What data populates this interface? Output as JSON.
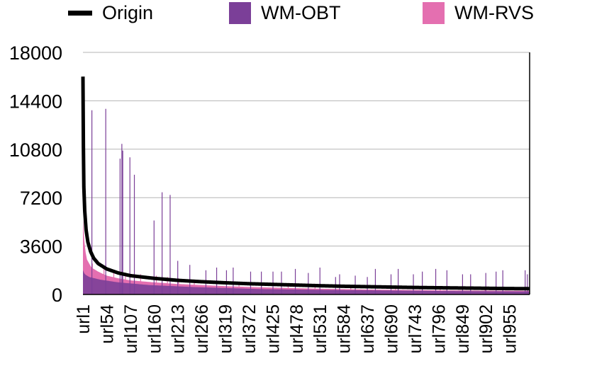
{
  "chart_data": {
    "type": "bar",
    "legend": {
      "placement": "top",
      "items": [
        {
          "name": "Origin",
          "kind": "line",
          "color": "#000000"
        },
        {
          "name": "WM-OBT",
          "kind": "bar",
          "color": "#7b3f98"
        },
        {
          "name": "WM-RVS",
          "kind": "bar",
          "color": "#e46fb0"
        }
      ]
    },
    "x_count": 1000,
    "tick_labels": [
      "url1",
      "url54",
      "url107",
      "url160",
      "url213",
      "url266",
      "url319",
      "url372",
      "url425",
      "url478",
      "url531",
      "url584",
      "url637",
      "url690",
      "url743",
      "url796",
      "url849",
      "url902",
      "url955"
    ],
    "ylim": [
      0,
      18000
    ],
    "yticks": [
      0,
      3600,
      7200,
      10800,
      14400,
      18000
    ],
    "grid": true,
    "series": [
      {
        "name": "Origin",
        "type": "line",
        "color": "#000000",
        "points": [
          [
            1,
            16200
          ],
          [
            2,
            11000
          ],
          [
            3,
            8000
          ],
          [
            5,
            6200
          ],
          [
            8,
            4800
          ],
          [
            12,
            3900
          ],
          [
            18,
            3200
          ],
          [
            25,
            2700
          ],
          [
            35,
            2300
          ],
          [
            54,
            1900
          ],
          [
            80,
            1600
          ],
          [
            107,
            1400
          ],
          [
            160,
            1200
          ],
          [
            213,
            1050
          ],
          [
            266,
            950
          ],
          [
            319,
            870
          ],
          [
            372,
            800
          ],
          [
            425,
            750
          ],
          [
            478,
            700
          ],
          [
            531,
            650
          ],
          [
            584,
            610
          ],
          [
            637,
            580
          ],
          [
            690,
            550
          ],
          [
            743,
            520
          ],
          [
            796,
            500
          ],
          [
            849,
            480
          ],
          [
            902,
            460
          ],
          [
            955,
            440
          ],
          [
            1000,
            430
          ]
        ]
      },
      {
        "name": "WM-RVS",
        "type": "bar",
        "color": "#e46fb0",
        "envelope": [
          [
            1,
            5600
          ],
          [
            3,
            4400
          ],
          [
            6,
            3300
          ],
          [
            10,
            2600
          ],
          [
            20,
            2000
          ],
          [
            35,
            1700
          ],
          [
            54,
            1400
          ],
          [
            80,
            1200
          ],
          [
            107,
            1050
          ],
          [
            160,
            900
          ],
          [
            213,
            780
          ],
          [
            266,
            700
          ],
          [
            319,
            620
          ],
          [
            372,
            560
          ],
          [
            425,
            510
          ],
          [
            478,
            470
          ],
          [
            531,
            430
          ],
          [
            584,
            400
          ],
          [
            637,
            370
          ],
          [
            690,
            350
          ],
          [
            743,
            330
          ],
          [
            796,
            310
          ],
          [
            849,
            300
          ],
          [
            902,
            290
          ],
          [
            955,
            280
          ],
          [
            1000,
            270
          ]
        ],
        "spikes": [
          [
            22,
            2300
          ],
          [
            48,
            2000
          ],
          [
            70,
            1800
          ],
          [
            96,
            1600
          ],
          [
            130,
            1500
          ],
          [
            165,
            1400
          ],
          [
            190,
            1300
          ],
          [
            215,
            1200
          ],
          [
            250,
            1100
          ],
          [
            300,
            1000
          ],
          [
            350,
            950
          ],
          [
            400,
            900
          ],
          [
            460,
            850
          ],
          [
            520,
            800
          ],
          [
            600,
            700
          ],
          [
            700,
            650
          ],
          [
            800,
            600
          ],
          [
            900,
            550
          ],
          [
            990,
            500
          ]
        ]
      },
      {
        "name": "WM-OBT",
        "type": "bar",
        "color": "#7b3f98",
        "envelope": [
          [
            1,
            1800
          ],
          [
            5,
            1500
          ],
          [
            15,
            1300
          ],
          [
            40,
            1100
          ],
          [
            80,
            900
          ],
          [
            150,
            700
          ],
          [
            250,
            550
          ],
          [
            400,
            400
          ],
          [
            600,
            320
          ],
          [
            800,
            260
          ],
          [
            1000,
            220
          ]
        ],
        "spikes": [
          [
            21,
            13700
          ],
          [
            52,
            13800
          ],
          [
            84,
            10100
          ],
          [
            88,
            11200
          ],
          [
            90,
            10700
          ],
          [
            106,
            10200
          ],
          [
            116,
            8900
          ],
          [
            160,
            5500
          ],
          [
            178,
            7600
          ],
          [
            196,
            7400
          ],
          [
            213,
            2500
          ],
          [
            240,
            2200
          ],
          [
            276,
            1800
          ],
          [
            300,
            2000
          ],
          [
            322,
            1800
          ],
          [
            337,
            2000
          ],
          [
            376,
            1700
          ],
          [
            400,
            1700
          ],
          [
            426,
            1700
          ],
          [
            445,
            1700
          ],
          [
            476,
            1900
          ],
          [
            505,
            1600
          ],
          [
            531,
            2000
          ],
          [
            566,
            1300
          ],
          [
            575,
            1500
          ],
          [
            610,
            1400
          ],
          [
            637,
            1300
          ],
          [
            655,
            1900
          ],
          [
            690,
            1500
          ],
          [
            706,
            1900
          ],
          [
            740,
            1500
          ],
          [
            760,
            1700
          ],
          [
            790,
            1900
          ],
          [
            815,
            1800
          ],
          [
            850,
            1500
          ],
          [
            868,
            1500
          ],
          [
            902,
            1600
          ],
          [
            925,
            1700
          ],
          [
            940,
            1800
          ],
          [
            990,
            1800
          ],
          [
            995,
            1500
          ]
        ]
      }
    ]
  }
}
